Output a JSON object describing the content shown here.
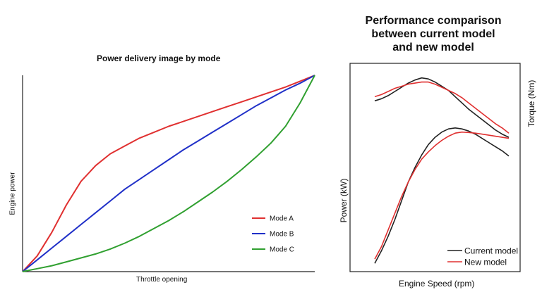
{
  "chart_data": [
    {
      "type": "line",
      "title": "Power delivery image by mode",
      "xlabel": "Throttle opening",
      "ylabel": "Engine power",
      "xlim": [
        0,
        1
      ],
      "ylim": [
        0,
        1
      ],
      "grid": false,
      "legend_position": "bottom-right",
      "series": [
        {
          "name": "Mode A",
          "color": "#e03030",
          "x": [
            0,
            0.05,
            0.1,
            0.15,
            0.2,
            0.25,
            0.3,
            0.35,
            0.4,
            0.45,
            0.5,
            0.55,
            0.6,
            0.65,
            0.7,
            0.75,
            0.8,
            0.85,
            0.9,
            0.95,
            1
          ],
          "y": [
            0,
            0.08,
            0.2,
            0.34,
            0.46,
            0.54,
            0.6,
            0.64,
            0.68,
            0.71,
            0.74,
            0.765,
            0.79,
            0.815,
            0.84,
            0.865,
            0.89,
            0.915,
            0.94,
            0.97,
            1
          ]
        },
        {
          "name": "Mode B",
          "color": "#2030c8",
          "x": [
            0,
            0.05,
            0.1,
            0.15,
            0.2,
            0.25,
            0.3,
            0.35,
            0.4,
            0.45,
            0.5,
            0.55,
            0.6,
            0.65,
            0.7,
            0.75,
            0.8,
            0.85,
            0.9,
            0.95,
            1
          ],
          "y": [
            0,
            0.06,
            0.12,
            0.18,
            0.24,
            0.3,
            0.36,
            0.42,
            0.47,
            0.52,
            0.57,
            0.62,
            0.665,
            0.71,
            0.755,
            0.8,
            0.845,
            0.885,
            0.925,
            0.96,
            1
          ]
        },
        {
          "name": "Mode C",
          "color": "#30a030",
          "x": [
            0,
            0.05,
            0.1,
            0.15,
            0.2,
            0.25,
            0.3,
            0.35,
            0.4,
            0.45,
            0.5,
            0.55,
            0.6,
            0.65,
            0.7,
            0.75,
            0.8,
            0.85,
            0.9,
            0.95,
            1
          ],
          "y": [
            0,
            0.015,
            0.03,
            0.05,
            0.07,
            0.09,
            0.115,
            0.145,
            0.18,
            0.22,
            0.26,
            0.305,
            0.355,
            0.405,
            0.46,
            0.52,
            0.585,
            0.655,
            0.74,
            0.86,
            1
          ]
        }
      ]
    },
    {
      "type": "line",
      "title": "Performance comparison\nbetween current model\nand new model",
      "xlabel": "Engine Speed (rpm)",
      "ylabel": "Power (kW)",
      "y2label": "Torque (Nm)",
      "xlim": [
        0,
        1
      ],
      "ylim": [
        0,
        1
      ],
      "grid": false,
      "legend_position": "bottom-right",
      "series": [
        {
          "name": "Current model",
          "color": "#222222",
          "power": {
            "x": [
              0,
              0.05,
              0.1,
              0.15,
              0.2,
              0.25,
              0.3,
              0.35,
              0.4,
              0.45,
              0.5,
              0.55,
              0.6,
              0.65,
              0.7,
              0.75,
              0.8,
              0.85,
              0.9,
              0.95,
              1
            ],
            "y": [
              0.04,
              0.1,
              0.17,
              0.25,
              0.34,
              0.43,
              0.5,
              0.56,
              0.61,
              0.645,
              0.67,
              0.685,
              0.69,
              0.685,
              0.675,
              0.66,
              0.64,
              0.62,
              0.6,
              0.58,
              0.555
            ]
          },
          "torque": {
            "x": [
              0,
              0.05,
              0.1,
              0.15,
              0.2,
              0.25,
              0.3,
              0.35,
              0.4,
              0.45,
              0.5,
              0.55,
              0.6,
              0.65,
              0.7,
              0.75,
              0.8,
              0.85,
              0.9,
              0.95,
              1
            ],
            "y": [
              0.82,
              0.83,
              0.845,
              0.865,
              0.885,
              0.905,
              0.92,
              0.93,
              0.925,
              0.91,
              0.89,
              0.87,
              0.84,
              0.81,
              0.78,
              0.755,
              0.73,
              0.705,
              0.68,
              0.66,
              0.645
            ]
          }
        },
        {
          "name": "New model",
          "color": "#e03030",
          "power": {
            "x": [
              0,
              0.05,
              0.1,
              0.15,
              0.2,
              0.25,
              0.3,
              0.35,
              0.4,
              0.45,
              0.5,
              0.55,
              0.6,
              0.65,
              0.7,
              0.75,
              0.8,
              0.85,
              0.9,
              0.95,
              1
            ],
            "y": [
              0.06,
              0.12,
              0.2,
              0.28,
              0.36,
              0.43,
              0.49,
              0.54,
              0.575,
              0.605,
              0.63,
              0.65,
              0.665,
              0.67,
              0.668,
              0.665,
              0.66,
              0.655,
              0.65,
              0.645,
              0.64
            ]
          },
          "torque": {
            "x": [
              0,
              0.05,
              0.1,
              0.15,
              0.2,
              0.25,
              0.3,
              0.35,
              0.4,
              0.45,
              0.5,
              0.55,
              0.6,
              0.65,
              0.7,
              0.75,
              0.8,
              0.85,
              0.9,
              0.95,
              1
            ],
            "y": [
              0.84,
              0.85,
              0.865,
              0.88,
              0.89,
              0.9,
              0.905,
              0.91,
              0.91,
              0.9,
              0.885,
              0.87,
              0.855,
              0.835,
              0.81,
              0.785,
              0.76,
              0.735,
              0.71,
              0.69,
              0.665
            ]
          }
        }
      ]
    }
  ]
}
